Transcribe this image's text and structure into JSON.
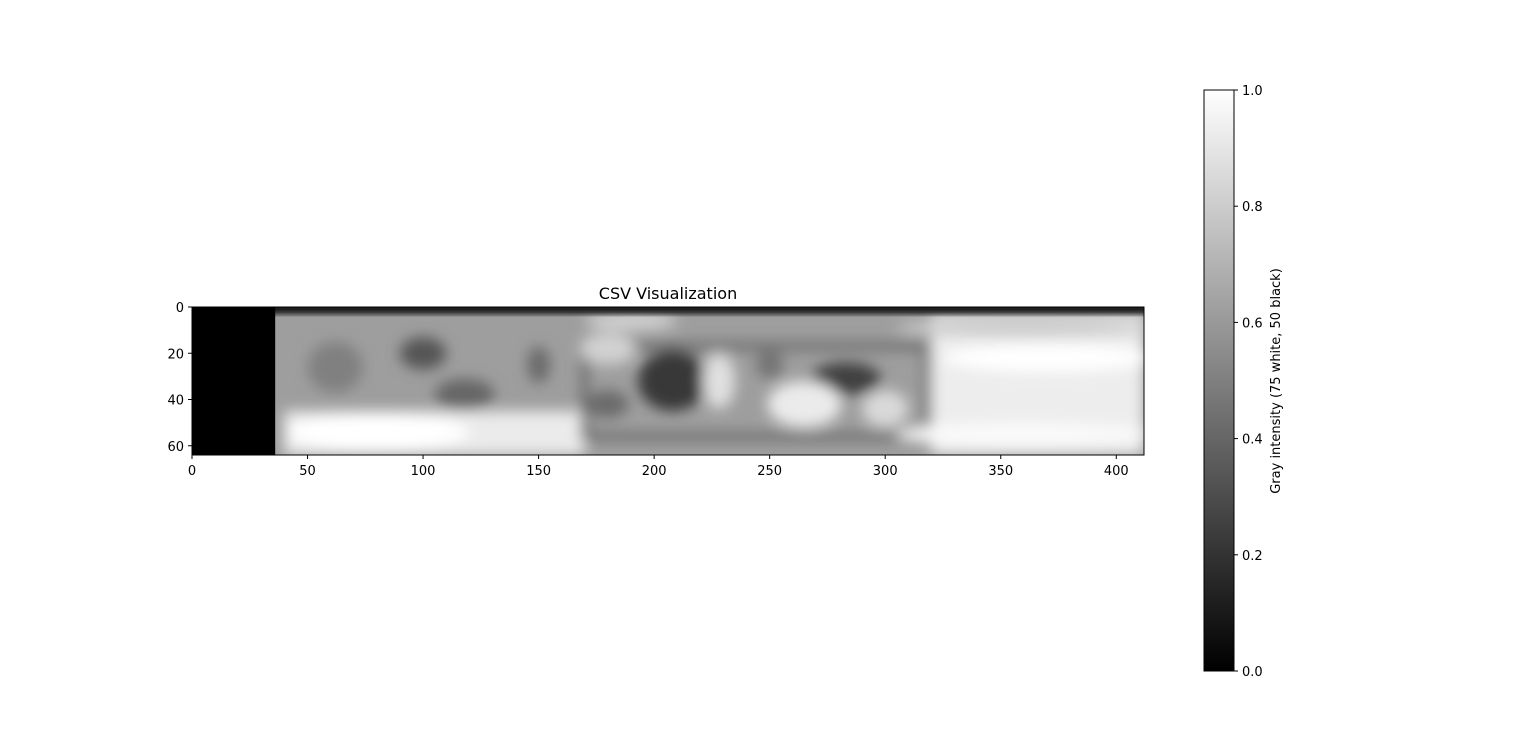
{
  "chart_data": {
    "type": "heatmap",
    "title": "CSV Visualization",
    "colormap": "gray",
    "grid": false,
    "x_range": [
      0,
      412
    ],
    "y_range": [
      0,
      64
    ],
    "y_inverted": true,
    "x_ticks": [
      0,
      50,
      100,
      150,
      200,
      250,
      300,
      350,
      400
    ],
    "y_ticks": [
      0,
      20,
      40,
      60
    ],
    "colorbar": {
      "label": "Gray intensity (75 white, 50 black)",
      "range": [
        0,
        1
      ],
      "ticks": [
        "0.0",
        "0.2",
        "0.4",
        "0.6",
        "0.8",
        "1.0"
      ],
      "placement": "right"
    },
    "background_level": 0.62,
    "regions": [
      {
        "kind": "black_band",
        "x": [
          0,
          36
        ],
        "y": [
          0,
          64
        ],
        "value": 0.0
      },
      {
        "kind": "top_dark_row",
        "x": [
          36,
          412
        ],
        "y": [
          0,
          3
        ],
        "value": 0.08
      },
      {
        "kind": "bright_right",
        "x": [
          320,
          412
        ],
        "y": [
          3,
          64
        ],
        "value": 0.93
      },
      {
        "kind": "bright_bottom_left",
        "x": [
          40,
          170
        ],
        "y": [
          45,
          64
        ],
        "value": 0.92
      },
      {
        "kind": "box_outline",
        "x": [
          170,
          318
        ],
        "y": [
          17,
          56
        ],
        "value": 0.42
      }
    ],
    "blobs": [
      {
        "x": 100,
        "y": 20,
        "rx": 10,
        "ry": 7,
        "value": 0.33
      },
      {
        "x": 118,
        "y": 38,
        "rx": 13,
        "ry": 7,
        "value": 0.4
      },
      {
        "x": 150,
        "y": 25,
        "rx": 5,
        "ry": 8,
        "value": 0.42
      },
      {
        "x": 62,
        "y": 26,
        "rx": 12,
        "ry": 11,
        "value": 0.5
      },
      {
        "x": 180,
        "y": 42,
        "rx": 9,
        "ry": 6,
        "value": 0.42
      },
      {
        "x": 208,
        "y": 32,
        "rx": 15,
        "ry": 13,
        "value": 0.22
      },
      {
        "x": 228,
        "y": 32,
        "rx": 7,
        "ry": 12,
        "value": 0.88
      },
      {
        "x": 283,
        "y": 31,
        "rx": 15,
        "ry": 7,
        "value": 0.25
      },
      {
        "x": 265,
        "y": 42,
        "rx": 16,
        "ry": 10,
        "value": 0.92
      },
      {
        "x": 300,
        "y": 44,
        "rx": 10,
        "ry": 8,
        "value": 0.85
      },
      {
        "x": 250,
        "y": 25,
        "rx": 6,
        "ry": 6,
        "value": 0.45
      },
      {
        "x": 180,
        "y": 18,
        "rx": 12,
        "ry": 7,
        "value": 0.82
      },
      {
        "x": 190,
        "y": 6,
        "rx": 20,
        "ry": 4,
        "value": 0.82
      },
      {
        "x": 360,
        "y": 9,
        "rx": 55,
        "ry": 4,
        "value": 0.8
      },
      {
        "x": 370,
        "y": 22,
        "rx": 45,
        "ry": 6,
        "value": 1.0
      },
      {
        "x": 360,
        "y": 55,
        "rx": 55,
        "ry": 5,
        "value": 0.98
      },
      {
        "x": 80,
        "y": 54,
        "rx": 40,
        "ry": 8,
        "value": 1.0
      }
    ]
  }
}
